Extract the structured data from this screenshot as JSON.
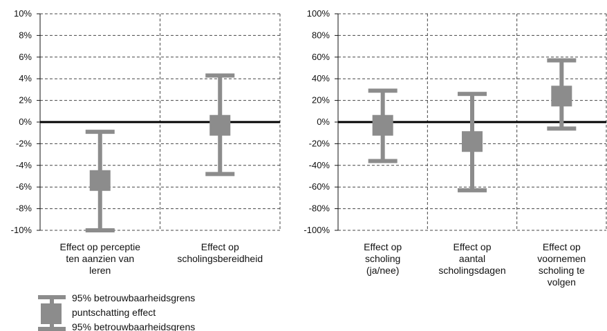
{
  "chart_data": [
    {
      "type": "errorbar",
      "y_unit": "percent",
      "ylim": [
        -10,
        10
      ],
      "y_ticks": [
        10,
        8,
        6,
        4,
        2,
        0,
        -2,
        -4,
        -6,
        -8,
        -10
      ],
      "y_tick_labels": [
        "10%",
        "8%",
        "6%",
        "4%",
        "2%",
        "0%",
        "-2%",
        "-4%",
        "-6%",
        "-8%",
        "-10%"
      ],
      "grid": true,
      "categories": [
        [
          "Effect op perceptie",
          "ten aanzien van",
          "leren"
        ],
        [
          "Effect op",
          "scholingsbereidheid"
        ]
      ],
      "points": [
        {
          "estimate": -5.4,
          "lower": -10.0,
          "upper": -0.9
        },
        {
          "estimate": -0.3,
          "lower": -4.8,
          "upper": 4.3
        }
      ]
    },
    {
      "type": "errorbar",
      "y_unit": "percent",
      "ylim": [
        -100,
        100
      ],
      "y_ticks": [
        100,
        80,
        60,
        40,
        20,
        0,
        -20,
        -40,
        -60,
        -80,
        -100
      ],
      "y_tick_labels": [
        "100%",
        "80%",
        "60%",
        "40%",
        "20%",
        "0%",
        "-20%",
        "-40%",
        "-60%",
        "-80%",
        "-100%"
      ],
      "grid": true,
      "categories": [
        [
          "Effect op",
          "scholing",
          "(ja/nee)"
        ],
        [
          "Effect op",
          "aantal",
          "scholingsdagen"
        ],
        [
          "Effect op",
          "voornemen",
          "scholing te",
          "volgen"
        ]
      ],
      "points": [
        {
          "estimate": -3,
          "lower": -36,
          "upper": 29
        },
        {
          "estimate": -18,
          "lower": -63,
          "upper": 26
        },
        {
          "estimate": 24,
          "lower": -6,
          "upper": 57
        }
      ]
    }
  ],
  "legend": {
    "upper": "95% betrouwbaarheidsgrens",
    "estimate": "puntschatting effect",
    "lower": "95% betrouwbaarheidsgrens"
  },
  "colors": {
    "marker": "#8c8c8c",
    "zero_line": "#000000",
    "grid": "#444444"
  }
}
